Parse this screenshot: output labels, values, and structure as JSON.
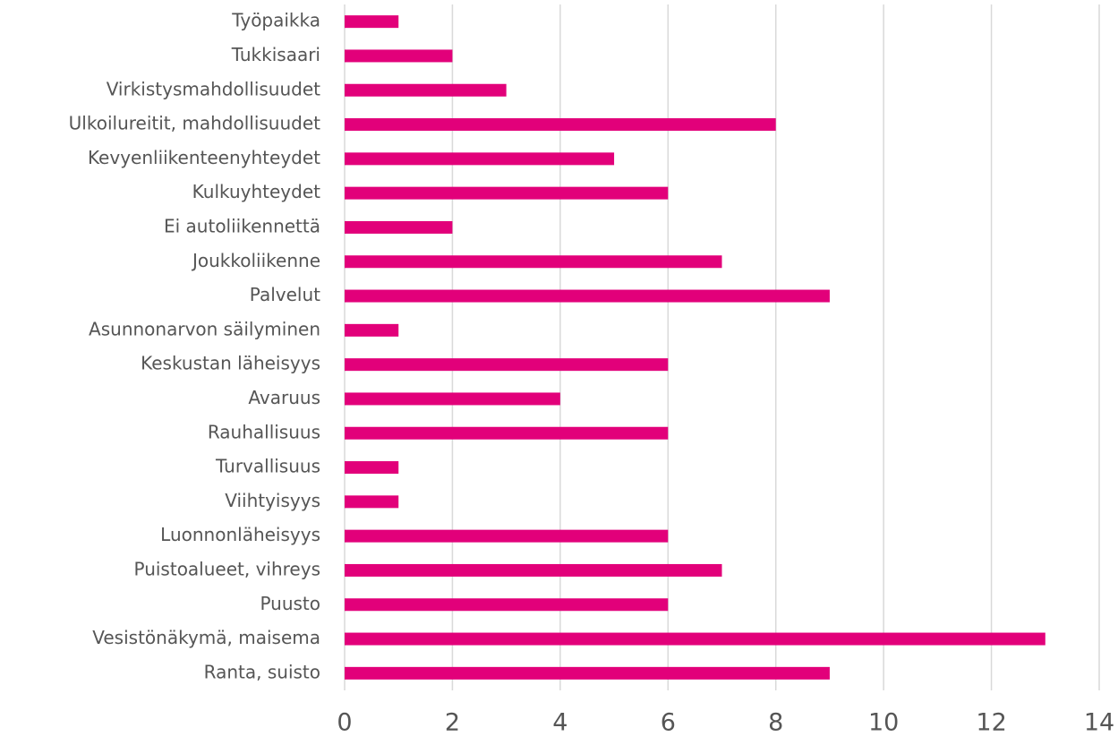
{
  "chart_data": {
    "type": "hbar",
    "categories": [
      "Työpaikka",
      "Tukkisaari",
      "Virkistysmahdollisuudet",
      "Ulkoilureitit, mahdollisuudet",
      "Kevyenliikenteenyhteydet",
      "Kulkuyhteydet",
      "Ei autoliikennettä",
      "Joukkoliikenne",
      "Palvelut",
      "Asunnonarvon säilyminen",
      "Keskustan läheisyys",
      "Avaruus",
      "Rauhallisuus",
      "Turvallisuus",
      "Viihtyisyys",
      "Luonnonläheisyys",
      "Puistoalueet, vihreys",
      "Puusto",
      "Vesistönäkymä, maisema",
      "Ranta, suisto"
    ],
    "values": [
      1,
      2,
      3,
      8,
      5,
      6,
      2,
      7,
      9,
      1,
      6,
      4,
      6,
      1,
      1,
      6,
      7,
      6,
      13,
      9
    ],
    "color": "#e2007a",
    "xlim": [
      0,
      14
    ],
    "xticks": [
      0,
      2,
      4,
      6,
      8,
      10,
      12,
      14
    ],
    "grid": true
  }
}
